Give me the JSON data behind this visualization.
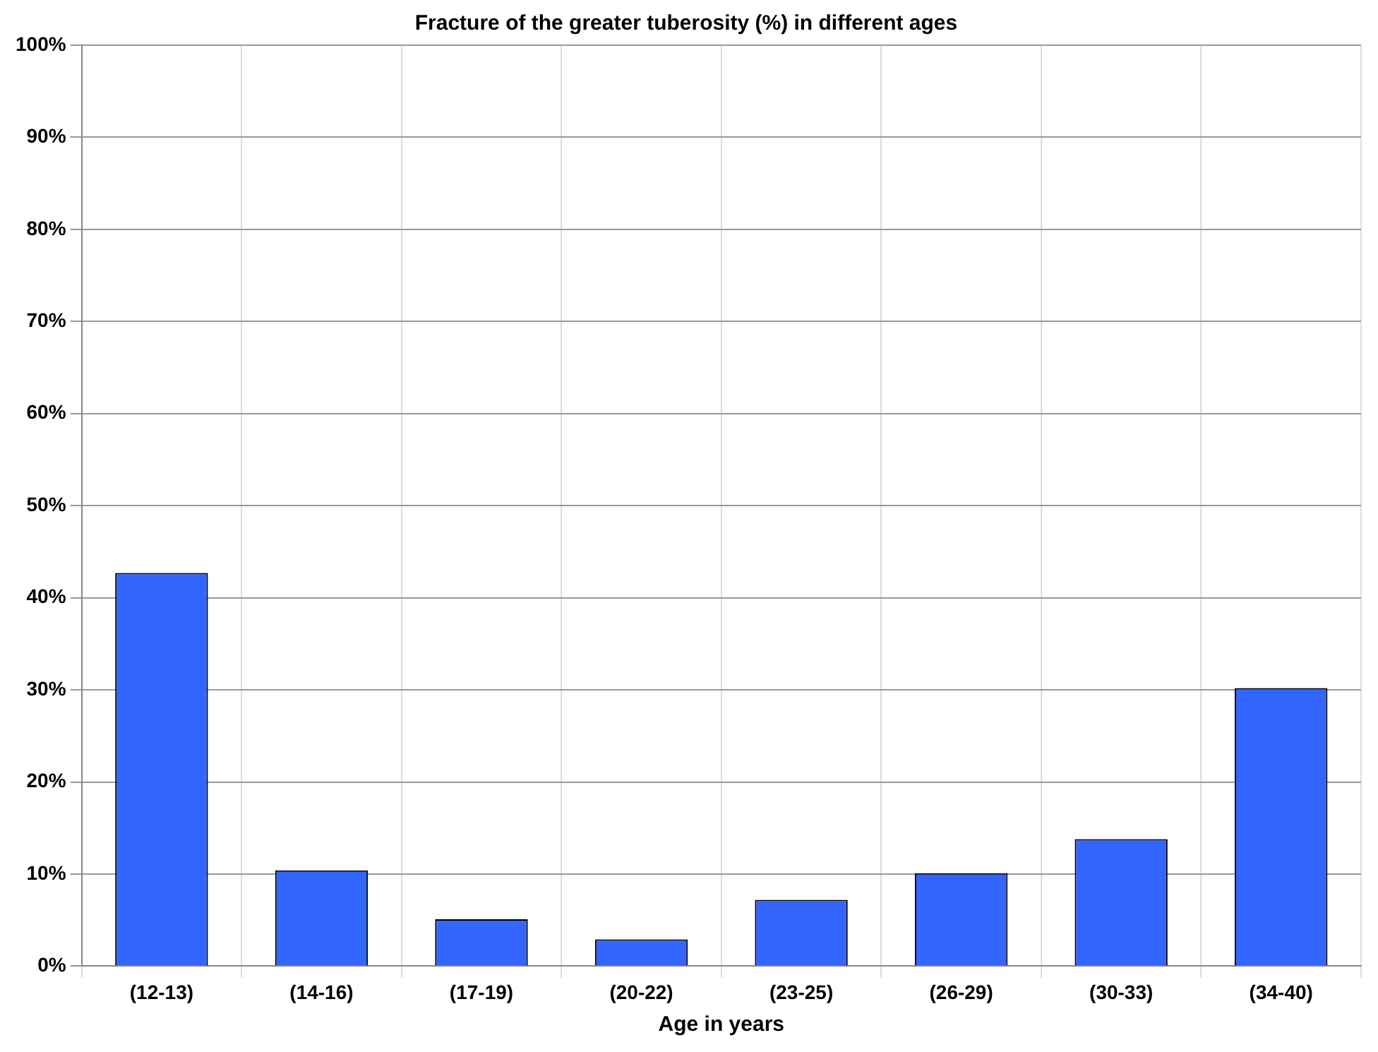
{
  "chart_data": {
    "type": "bar",
    "title": "Fracture of the greater tuberosity (%) in different ages",
    "xlabel": "Age in years",
    "categories": [
      "(12-13)",
      "(14-16)",
      "(17-19)",
      "(20-22)",
      "(23-25)",
      "(26-29)",
      "(30-33)",
      "(34-40)"
    ],
    "values": [
      42.7,
      10.4,
      5.1,
      2.9,
      7.2,
      10.1,
      13.8,
      30.2
    ],
    "color": "#3366ff",
    "ylim": [
      0,
      100
    ],
    "yticks": [
      {
        "value": 0,
        "label": "0%"
      },
      {
        "value": 10,
        "label": "10%"
      },
      {
        "value": 20,
        "label": "20%"
      },
      {
        "value": 30,
        "label": "30%"
      },
      {
        "value": 40,
        "label": "40%"
      },
      {
        "value": 50,
        "label": "50%"
      },
      {
        "value": 60,
        "label": "60%"
      },
      {
        "value": 70,
        "label": "70%"
      },
      {
        "value": 80,
        "label": "80%"
      },
      {
        "value": 90,
        "label": "90%"
      },
      {
        "value": 100,
        "label": "100%"
      }
    ],
    "grid": true,
    "legend": false
  }
}
